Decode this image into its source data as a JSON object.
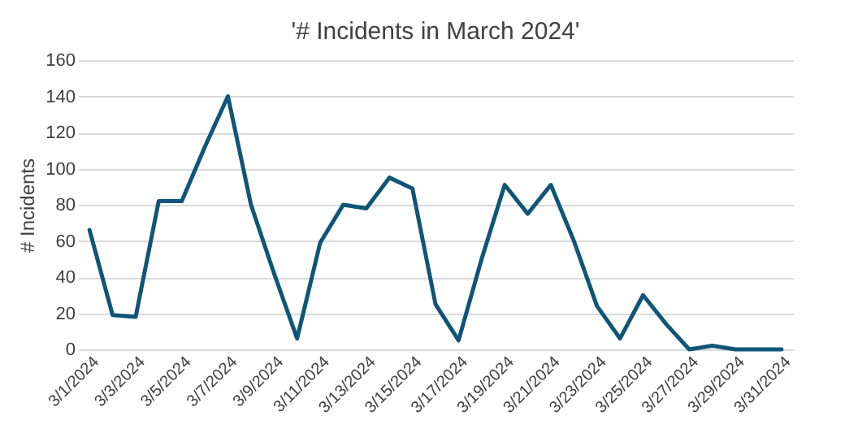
{
  "chart_data": {
    "type": "line",
    "title": "'# Incidents in March 2024'",
    "ylabel": "# Incidents",
    "categories": [
      "3/1/2024",
      null,
      "3/3/2024",
      null,
      "3/5/2024",
      null,
      "3/7/2024",
      null,
      "3/9/2024",
      null,
      "3/11/2024",
      null,
      "3/13/2024",
      null,
      "3/15/2024",
      null,
      "3/17/2024",
      null,
      "3/19/2024",
      null,
      "3/21/2024",
      null,
      "3/23/2024",
      null,
      "3/25/2024",
      null,
      "3/27/2024",
      null,
      "3/29/2024",
      null,
      "3/31/2024"
    ],
    "series": [
      {
        "color": "#0f5578",
        "values": [
          66,
          19,
          18,
          82,
          82,
          112,
          140,
          80,
          42,
          6,
          59,
          80,
          78,
          95,
          89,
          25,
          5,
          50,
          91,
          75,
          91,
          60,
          24,
          6,
          30,
          14,
          0,
          2,
          0,
          0,
          0
        ]
      }
    ],
    "ylim": [
      0,
      160
    ],
    "yticks": [
      0,
      20,
      40,
      60,
      80,
      100,
      120,
      140,
      160
    ],
    "grid": "y",
    "legend": false,
    "marker": "none",
    "line_style": "solid"
  }
}
